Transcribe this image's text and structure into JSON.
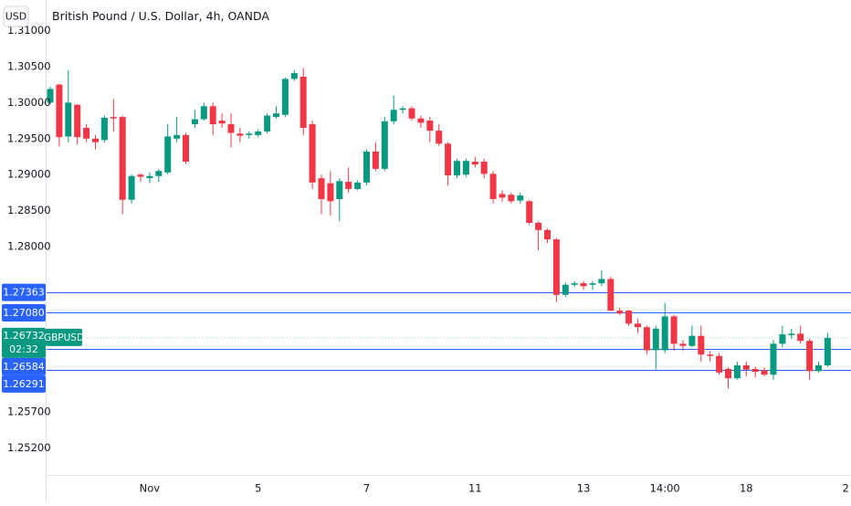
{
  "chart_data": {
    "type": "candlestick",
    "title": "British Pound / U.S. Dollar, 4h, OANDA",
    "currency": "USD",
    "symbol": "GBPUSD",
    "countdown": "02:32",
    "up_color": "#089981",
    "down_color": "#f23645",
    "level_color": "#2962ff",
    "categories": [
      null,
      null,
      null,
      null,
      null,
      null,
      null,
      null,
      null,
      null,
      null,
      "Nov",
      null,
      null,
      null,
      null,
      null,
      null,
      null,
      null,
      null,
      null,
      null,
      "5",
      null,
      null,
      null,
      null,
      null,
      null,
      null,
      null,
      null,
      null,
      null,
      "7",
      null,
      null,
      null,
      null,
      null,
      null,
      null,
      null,
      null,
      null,
      null,
      "11",
      null,
      null,
      null,
      null,
      null,
      null,
      null,
      null,
      null,
      null,
      null,
      "13",
      null,
      null,
      null,
      null,
      null,
      null,
      null,
      null,
      "14:00",
      null,
      null,
      null,
      null,
      null,
      null,
      null,
      null,
      "18",
      null,
      null,
      null,
      null,
      null,
      null,
      null,
      null,
      null,
      null,
      "2"
    ],
    "open": [
      1.3,
      1.3025,
      1.2953,
      1.2997,
      1.2965,
      1.295,
      1.2948,
      1.298,
      1.298,
      1.2865,
      1.29,
      1.2895,
      1.2898,
      1.2903,
      1.295,
      1.2955,
      1.297,
      1.2977,
      1.2995,
      1.2975,
      1.297,
      1.2957,
      1.2955,
      1.2955,
      1.296,
      1.298,
      1.2983,
      1.3033,
      1.3036,
      1.297,
      1.2895,
      1.2888,
      1.2866,
      1.289,
      1.288,
      1.2889,
      1.2932,
      1.2908,
      1.2974,
      1.299,
      1.2992,
      1.2978,
      1.2975,
      1.2961,
      1.2943,
      1.2899,
      1.29,
      1.2918,
      1.2918,
      1.2901,
      1.2873,
      1.2872,
      1.2864,
      1.2863,
      1.2833,
      1.2823,
      1.281,
      1.2733,
      1.2747,
      1.2749,
      1.2747,
      1.2749,
      1.2755,
      1.2711,
      1.2711,
      1.2693,
      1.2688,
      1.2656,
      1.2656,
      1.2703,
      1.2665,
      1.2662,
      1.2676,
      1.265,
      1.2648,
      1.263,
      1.2617,
      1.2635,
      1.263,
      1.2628,
      1.2622,
      1.2665,
      1.2677,
      1.2679,
      1.2669,
      1.2627,
      1.2635,
      null,
      null
    ],
    "high": [
      1.3022,
      1.3026,
      1.3045,
      1.2998,
      1.297,
      1.2955,
      1.2982,
      1.3005,
      1.2982,
      1.29,
      1.2902,
      1.2903,
      1.2908,
      1.297,
      1.298,
      1.2958,
      1.299,
      1.3,
      1.3,
      1.2985,
      1.2985,
      1.2965,
      1.296,
      1.2963,
      1.2985,
      1.2995,
      1.3035,
      1.3045,
      1.3048,
      1.2975,
      1.29,
      1.2905,
      1.2895,
      1.291,
      1.2892,
      1.2935,
      1.2945,
      1.298,
      1.301,
      1.2995,
      1.2995,
      1.2982,
      1.298,
      1.297,
      1.2945,
      1.2922,
      1.2922,
      1.2925,
      1.2922,
      1.2905,
      1.2878,
      1.2875,
      1.2875,
      1.2865,
      1.2835,
      1.2825,
      1.2812,
      1.275,
      1.2752,
      1.2752,
      1.2752,
      1.2767,
      1.2758,
      1.2715,
      1.2712,
      1.27,
      1.269,
      1.269,
      1.2722,
      1.2705,
      1.267,
      1.269,
      1.269,
      1.2655,
      1.2652,
      1.2632,
      1.264,
      1.264,
      1.2633,
      1.2632,
      1.267,
      1.269,
      1.2686,
      1.269,
      1.2672,
      1.264,
      1.268,
      null,
      null
    ],
    "low": [
      1.2998,
      1.2939,
      1.2945,
      1.2942,
      1.2945,
      1.2935,
      1.2945,
      1.296,
      1.2845,
      1.286,
      1.289,
      1.2888,
      1.289,
      1.29,
      1.2945,
      1.2915,
      1.2965,
      1.2975,
      1.2955,
      1.2965,
      1.2938,
      1.2945,
      1.295,
      1.2952,
      1.2957,
      1.2978,
      1.298,
      1.303,
      1.2955,
      1.288,
      1.2845,
      1.2843,
      1.2835,
      1.2875,
      1.2878,
      1.2885,
      1.2905,
      1.2905,
      1.297,
      1.2985,
      1.2975,
      1.2965,
      1.2945,
      1.294,
      1.2885,
      1.2895,
      1.2897,
      1.291,
      1.2895,
      1.286,
      1.2862,
      1.286,
      1.286,
      1.283,
      1.2795,
      1.2805,
      1.2723,
      1.273,
      1.2744,
      1.274,
      1.274,
      1.2745,
      1.271,
      1.2705,
      1.269,
      1.268,
      1.265,
      1.2629,
      1.2652,
      1.2655,
      1.2655,
      1.266,
      1.264,
      1.264,
      1.2622,
      1.2603,
      1.2615,
      1.262,
      1.2618,
      1.262,
      1.2615,
      1.266,
      1.2672,
      1.2665,
      1.2615,
      1.2625,
      1.2633,
      null,
      null
    ],
    "close": [
      1.3019,
      1.2952,
      1.3,
      1.2952,
      1.295,
      1.2945,
      1.2979,
      1.2978,
      1.2865,
      1.2898,
      1.2897,
      1.2898,
      1.2905,
      1.2953,
      1.2955,
      1.2918,
      1.2977,
      1.2995,
      1.297,
      1.2971,
      1.2958,
      1.2954,
      1.2957,
      1.296,
      1.2982,
      1.2985,
      1.3033,
      1.3041,
      1.2965,
      1.2889,
      1.2866,
      1.2863,
      1.2891,
      1.288,
      1.2889,
      1.2932,
      1.2908,
      1.2974,
      1.299,
      1.2992,
      1.2978,
      1.2972,
      1.2961,
      1.2943,
      1.2899,
      1.2919,
      1.2919,
      1.2914,
      1.2901,
      1.2866,
      1.2868,
      1.2863,
      1.2871,
      1.2833,
      1.2823,
      1.281,
      1.2733,
      1.2747,
      1.2749,
      1.2745,
      1.2749,
      1.2755,
      1.2711,
      1.2707,
      1.2693,
      1.2688,
      1.2656,
      1.2686,
      1.2703,
      1.2665,
      1.2662,
      1.2676,
      1.265,
      1.2648,
      1.2625,
      1.2617,
      1.2635,
      1.2629,
      1.2626,
      1.2622,
      1.2665,
      1.2678,
      1.2679,
      1.2669,
      1.2627,
      1.2635,
      1.26732,
      null,
      null
    ],
    "ylim": [
      1.24827,
      1.31426
    ],
    "yticks": [
      {
        "value": 1.31,
        "label": "1.31000"
      },
      {
        "value": 1.305,
        "label": "1.30500"
      },
      {
        "value": 1.3,
        "label": "1.30000"
      },
      {
        "value": 1.295,
        "label": "1.29500"
      },
      {
        "value": 1.29,
        "label": "1.29000"
      },
      {
        "value": 1.285,
        "label": "1.28500"
      },
      {
        "value": 1.28,
        "label": "1.28000"
      },
      {
        "value": 1.257,
        "label": "1.25700"
      },
      {
        "value": 1.252,
        "label": "1.25200"
      }
    ],
    "levels": [
      1.27363,
      {
        "value": 1.2708,
        "label": "1.27080"
      },
      1.26584,
      1.26291
    ],
    "last_price": 1.26732
  }
}
